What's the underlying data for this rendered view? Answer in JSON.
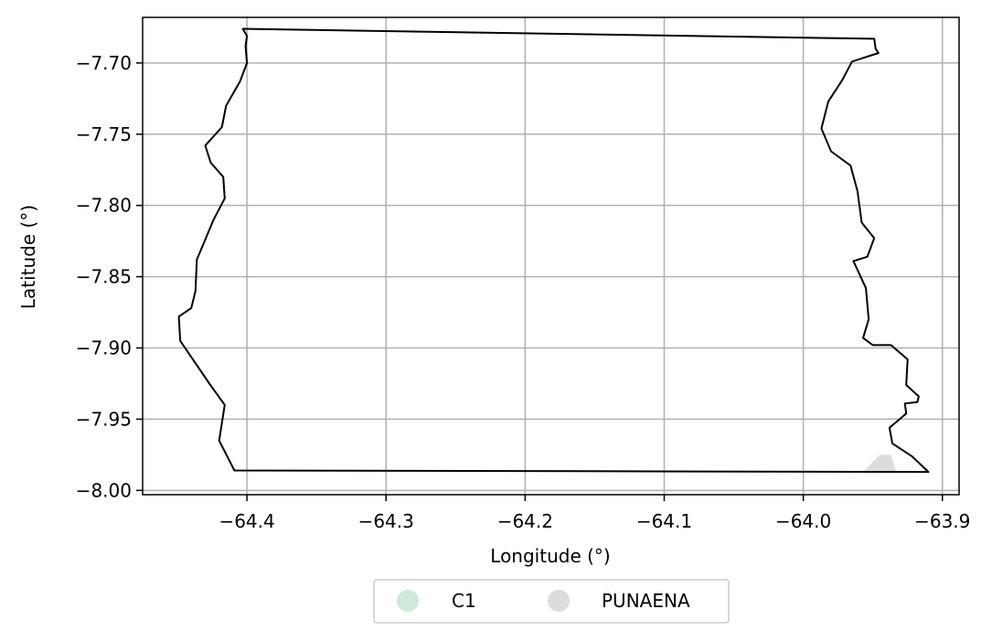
{
  "chart_data": {
    "type": "map",
    "xlabel": "Longitude (°)",
    "ylabel": "Latitude (°)",
    "xlim": [
      -64.475,
      -63.888
    ],
    "ylim": [
      -8.003,
      -7.668
    ],
    "x_ticks": [
      -64.4,
      -64.3,
      -64.2,
      -64.1,
      -64.0,
      -63.9
    ],
    "x_tick_labels": [
      "−64.4",
      "−64.3",
      "−64.2",
      "−64.1",
      "−64.0",
      "−63.9"
    ],
    "y_ticks": [
      -7.7,
      -7.75,
      -7.8,
      -7.85,
      -7.9,
      -7.95,
      -8.0
    ],
    "y_tick_labels": [
      "−7.70",
      "−7.75",
      "−7.80",
      "−7.85",
      "−7.90",
      "−7.95",
      "−8.00"
    ],
    "grid": true,
    "legend": {
      "placement": "bottom-center",
      "entries": [
        {
          "name": "C1",
          "color": "#cdeadb"
        },
        {
          "name": "PUNAENA",
          "color": "#dcdcdc"
        }
      ]
    },
    "regions": [
      {
        "name": "PUNAENA",
        "color": "#dcdcdc",
        "polygon": [
          [
            -63.957,
            -7.987
          ],
          [
            -63.945,
            -7.975
          ],
          [
            -63.937,
            -7.975
          ],
          [
            -63.933,
            -7.987
          ]
        ]
      }
    ],
    "boundary": [
      [
        -64.403,
        -7.676
      ],
      [
        -63.949,
        -7.683
      ],
      [
        -63.948,
        -7.69
      ],
      [
        -63.946,
        -7.693
      ],
      [
        -63.965,
        -7.699
      ],
      [
        -63.972,
        -7.712
      ],
      [
        -63.982,
        -7.727
      ],
      [
        -63.987,
        -7.746
      ],
      [
        -63.98,
        -7.762
      ],
      [
        -63.966,
        -7.772
      ],
      [
        -63.961,
        -7.79
      ],
      [
        -63.958,
        -7.812
      ],
      [
        -63.949,
        -7.823
      ],
      [
        -63.954,
        -7.836
      ],
      [
        -63.964,
        -7.839
      ],
      [
        -63.955,
        -7.858
      ],
      [
        -63.953,
        -7.88
      ],
      [
        -63.957,
        -7.893
      ],
      [
        -63.95,
        -7.898
      ],
      [
        -63.937,
        -7.898
      ],
      [
        -63.925,
        -7.908
      ],
      [
        -63.926,
        -7.926
      ],
      [
        -63.917,
        -7.934
      ],
      [
        -63.918,
        -7.938
      ],
      [
        -63.927,
        -7.939
      ],
      [
        -63.926,
        -7.946
      ],
      [
        -63.938,
        -7.956
      ],
      [
        -63.936,
        -7.967
      ],
      [
        -63.922,
        -7.976
      ],
      [
        -63.91,
        -7.987
      ],
      [
        -64.409,
        -7.986
      ],
      [
        -64.42,
        -7.965
      ],
      [
        -64.416,
        -7.94
      ],
      [
        -64.427,
        -7.925
      ],
      [
        -64.448,
        -7.895
      ],
      [
        -64.449,
        -7.878
      ],
      [
        -64.44,
        -7.872
      ],
      [
        -64.437,
        -7.86
      ],
      [
        -64.436,
        -7.838
      ],
      [
        -64.424,
        -7.81
      ],
      [
        -64.416,
        -7.795
      ],
      [
        -64.417,
        -7.78
      ],
      [
        -64.426,
        -7.77
      ],
      [
        -64.43,
        -7.758
      ],
      [
        -64.418,
        -7.745
      ],
      [
        -64.415,
        -7.73
      ],
      [
        -64.405,
        -7.713
      ],
      [
        -64.4,
        -7.7
      ],
      [
        -64.401,
        -7.688
      ],
      [
        -64.4,
        -7.681
      ],
      [
        -64.403,
        -7.676
      ]
    ]
  }
}
